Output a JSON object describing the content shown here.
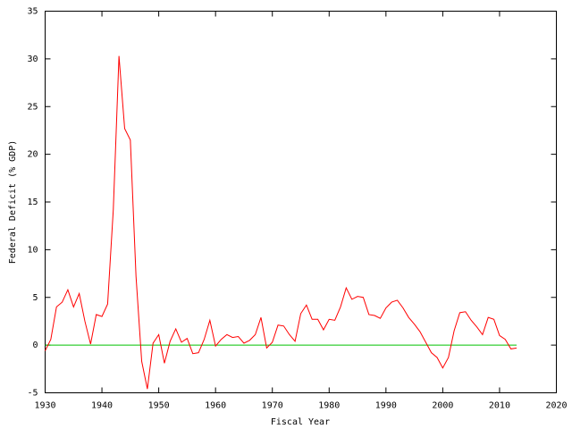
{
  "chart_data": {
    "type": "line",
    "xlabel": "Fiscal Year",
    "ylabel": "Federal Deficit (% GDP)",
    "xlim": [
      1930,
      2020
    ],
    "xticks": [
      1930,
      1940,
      1950,
      1960,
      1970,
      1980,
      1990,
      2000,
      2010,
      2020
    ],
    "ylim": [
      -5,
      35
    ],
    "yticks": [
      -5,
      0,
      5,
      10,
      15,
      20,
      25,
      30,
      35
    ],
    "grid": false,
    "series": [
      {
        "color": "#ff0000",
        "x": [
          1930,
          1931,
          1932,
          1933,
          1934,
          1935,
          1936,
          1937,
          1938,
          1939,
          1940,
          1941,
          1942,
          1943,
          1944,
          1945,
          1946,
          1947,
          1948,
          1949,
          1950,
          1951,
          1952,
          1953,
          1954,
          1955,
          1956,
          1957,
          1958,
          1959,
          1960,
          1961,
          1962,
          1963,
          1964,
          1965,
          1966,
          1967,
          1968,
          1969,
          1970,
          1971,
          1972,
          1973,
          1974,
          1975,
          1976,
          1977,
          1978,
          1979,
          1980,
          1981,
          1982,
          1983,
          1984,
          1985,
          1986,
          1987,
          1988,
          1989,
          1990,
          1991,
          1992,
          1993,
          1994,
          1995,
          1996,
          1997,
          1998,
          1999,
          2000,
          2001,
          2002,
          2003,
          2004,
          2005,
          2006,
          2007,
          2008,
          2009,
          2010,
          2011,
          2012,
          2013
        ],
        "values": [
          -0.6,
          0.6,
          4.0,
          4.5,
          5.8,
          4.0,
          5.4,
          2.5,
          0.1,
          3.2,
          3.0,
          4.3,
          14.2,
          30.3,
          22.7,
          21.5,
          7.2,
          -1.7,
          -4.6,
          0.2,
          1.1,
          -1.9,
          0.4,
          1.7,
          0.3,
          0.7,
          -0.9,
          -0.8,
          0.6,
          2.6,
          -0.1,
          0.6,
          1.1,
          0.8,
          0.9,
          0.2,
          0.5,
          1.1,
          2.9,
          -0.3,
          0.3,
          2.1,
          2.0,
          1.1,
          0.4,
          3.3,
          4.2,
          2.7,
          2.7,
          1.6,
          2.7,
          2.6,
          4.0,
          6.0,
          4.8,
          5.1,
          5.0,
          3.2,
          3.1,
          2.8,
          3.9,
          4.5,
          4.7,
          3.9,
          2.9,
          2.2,
          1.4,
          0.3,
          -0.8,
          -1.3,
          -2.4,
          -1.3,
          1.5,
          3.4,
          3.5,
          2.6,
          1.9,
          1.1,
          2.9,
          2.7,
          1.0,
          0.6,
          -0.4,
          -0.3
        ]
      },
      {
        "color": "#00c000",
        "x": [
          1930,
          2013
        ],
        "values": [
          0,
          0
        ]
      }
    ]
  }
}
